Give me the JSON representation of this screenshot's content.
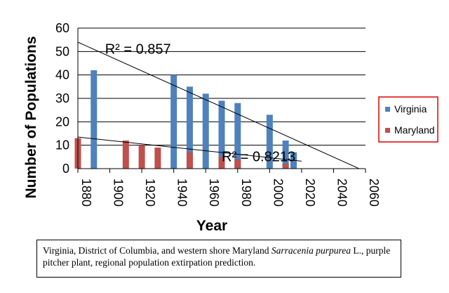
{
  "chart_data": {
    "type": "bar",
    "xlabel": "Year",
    "ylabel": "Number of Populations",
    "xlim": [
      1880,
      2060
    ],
    "ylim": [
      0,
      60
    ],
    "x_ticks": [
      1880,
      1900,
      1920,
      1940,
      1960,
      1980,
      2000,
      2020,
      2040,
      2060
    ],
    "y_ticks": [
      0,
      10,
      20,
      30,
      40,
      50,
      60
    ],
    "grid": true,
    "legend_position": "right",
    "series": [
      {
        "name": "Virginia",
        "color": "#4f81bd",
        "x": [
          1890,
          1940,
          1950,
          1960,
          1970,
          1980,
          2000,
          2010,
          2015
        ],
        "values": [
          42,
          40,
          35,
          32,
          29,
          28,
          23,
          12,
          7
        ]
      },
      {
        "name": "Maryland",
        "color": "#c0504d",
        "x": [
          1880,
          1910,
          1920,
          1930,
          1950,
          1970,
          1980,
          2010
        ],
        "values": [
          13,
          12,
          10,
          9,
          7,
          5,
          4,
          2
        ]
      }
    ],
    "trendlines": [
      {
        "series": "Virginia",
        "from": [
          1880,
          54
        ],
        "to": [
          2056,
          0
        ],
        "label": "R² = 0.857",
        "label_at": [
          1897,
          49
        ]
      },
      {
        "series": "Maryland",
        "from": [
          1880,
          13.5
        ],
        "to": [
          2020,
          3.2
        ],
        "label": "R² = 0.8213",
        "label_at": [
          1970,
          3.2
        ]
      }
    ]
  },
  "caption": {
    "text_before": "Virginia, District of Columbia, and western shore Maryland ",
    "species": "Sarracenia purpurea",
    "text_after": " L., purple pitcher plant, regional population extirpation prediction."
  }
}
